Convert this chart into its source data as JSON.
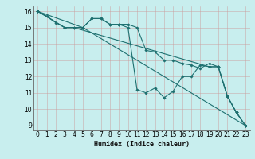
{
  "title": "",
  "xlabel": "Humidex (Indice chaleur)",
  "bg_color": "#c8eeee",
  "grid_color": "#bbbbbb",
  "line_color": "#1e7070",
  "xlim": [
    -0.5,
    23.5
  ],
  "ylim": [
    8.7,
    16.3
  ],
  "xticks": [
    0,
    1,
    2,
    3,
    4,
    5,
    6,
    7,
    8,
    9,
    10,
    11,
    12,
    13,
    14,
    15,
    16,
    17,
    18,
    19,
    20,
    21,
    22,
    23
  ],
  "yticks": [
    9,
    10,
    11,
    12,
    13,
    14,
    15,
    16
  ],
  "lines": [
    {
      "x": [
        0,
        1,
        2,
        3,
        4,
        5,
        6,
        7,
        8,
        9,
        10,
        11,
        12,
        13,
        14,
        15,
        16,
        17,
        18,
        19,
        20,
        21,
        22,
        23
      ],
      "y": [
        16,
        15.7,
        15.3,
        15.0,
        15.0,
        15.0,
        15.55,
        15.55,
        15.2,
        15.2,
        15.2,
        15.0,
        13.6,
        13.5,
        13.0,
        13.0,
        12.8,
        12.7,
        12.5,
        12.8,
        12.6,
        10.8,
        9.8,
        9.0
      ]
    },
    {
      "x": [
        0,
        3,
        5,
        6,
        7,
        8,
        9,
        10,
        11,
        12,
        13,
        14,
        15,
        16,
        17,
        18,
        19,
        20,
        21,
        22,
        23
      ],
      "y": [
        16,
        15.0,
        15.0,
        15.55,
        15.55,
        15.2,
        15.2,
        15.0,
        11.2,
        11.0,
        11.3,
        10.7,
        11.1,
        12.0,
        12.0,
        12.7,
        12.6,
        12.6,
        10.8,
        9.8,
        9.0
      ]
    },
    {
      "x": [
        0,
        5,
        23
      ],
      "y": [
        16,
        15.0,
        9.0
      ]
    },
    {
      "x": [
        0,
        3,
        4,
        19,
        20,
        21,
        22,
        23
      ],
      "y": [
        16,
        15.0,
        15.0,
        12.6,
        12.6,
        10.8,
        9.8,
        9.0
      ]
    }
  ]
}
